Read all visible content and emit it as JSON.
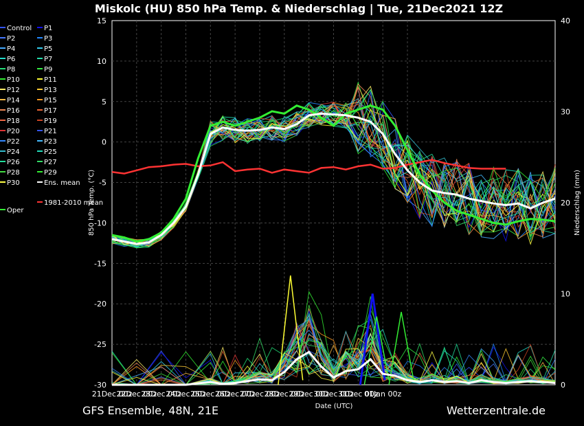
{
  "chart_data": {
    "type": "line",
    "title": "Miskolc  (HU)  850 hPa Temp. & Niederschlag | Tue, 21Dec2021 12Z",
    "xlabel": "Date (UTC)",
    "ylabel_left": "850 hPa Temp. (°C)",
    "ylabel_right": "Niederschlag (mm)",
    "ylim_left": [
      -30,
      15
    ],
    "ylim_right": [
      0,
      40
    ],
    "left_ticks": [
      "15",
      "10",
      "5",
      "0",
      "-5",
      "-10",
      "-15",
      "-20",
      "-25",
      "-30"
    ],
    "right_ticks": [
      "40",
      "30",
      "20",
      "10",
      "0"
    ],
    "x_ticks": [
      "21Dec 00z",
      "22Dec 00z",
      "23Dec 00z",
      "24Dec 00z",
      "25Dec 00z",
      "26Dec 00z",
      "27Dec 00z",
      "28Dec 00z",
      "29Dec 00z",
      "30Dec 00z",
      "31Dec 00z",
      "01Jan 00z"
    ],
    "x_hours_range": [
      0,
      432
    ],
    "grid": true,
    "legend_position": "left",
    "legend": [
      {
        "name": "Control",
        "color": "#3355ff"
      },
      {
        "name": "P1",
        "color": "#1111ee"
      },
      {
        "name": "P2",
        "color": "#4477ff"
      },
      {
        "name": "P3",
        "color": "#2288ff"
      },
      {
        "name": "P4",
        "color": "#44aaff"
      },
      {
        "name": "P5",
        "color": "#33ccee"
      },
      {
        "name": "P6",
        "color": "#22ddcc"
      },
      {
        "name": "P7",
        "color": "#22ddaa"
      },
      {
        "name": "P8",
        "color": "#22dd77"
      },
      {
        "name": "P9",
        "color": "#33ee44"
      },
      {
        "name": "P10",
        "color": "#33ee33"
      },
      {
        "name": "P11",
        "color": "#ffff33"
      },
      {
        "name": "P12",
        "color": "#ffee66"
      },
      {
        "name": "P13",
        "color": "#ffcc33"
      },
      {
        "name": "P14",
        "color": "#ffbb44"
      },
      {
        "name": "P15",
        "color": "#ff9922"
      },
      {
        "name": "P16",
        "color": "#ee8855"
      },
      {
        "name": "P17",
        "color": "#ee6633"
      },
      {
        "name": "P18",
        "color": "#ee6644"
      },
      {
        "name": "P19",
        "color": "#cc4422"
      },
      {
        "name": "P20",
        "color": "#dd3333"
      },
      {
        "name": "P21",
        "color": "#3355ee"
      },
      {
        "name": "P22",
        "color": "#3388ff"
      },
      {
        "name": "P23",
        "color": "#44bbff"
      },
      {
        "name": "P24",
        "color": "#33bbcc"
      },
      {
        "name": "P25",
        "color": "#22ddbb"
      },
      {
        "name": "P26",
        "color": "#22dd99"
      },
      {
        "name": "P27",
        "color": "#33dd66"
      },
      {
        "name": "P28",
        "color": "#44dd44"
      },
      {
        "name": "P29",
        "color": "#33ee33"
      },
      {
        "name": "P30",
        "color": "#ffff44"
      },
      {
        "name": "Ens. mean",
        "color": "#ffffff"
      },
      {
        "name": "1981-2010 mean",
        "color": "#ff3333"
      },
      {
        "name": "Oper",
        "color": "#33ee33"
      }
    ],
    "ensemble_mean_temp": {
      "x_hours": [
        0,
        12,
        24,
        36,
        48,
        60,
        72,
        84,
        96,
        108,
        120,
        132,
        144,
        156,
        168,
        180,
        192,
        204,
        216,
        228,
        240,
        252,
        264,
        276,
        288,
        300,
        312,
        324,
        336,
        348,
        360,
        372,
        384,
        396,
        408,
        420,
        432
      ],
      "values": [
        -12.0,
        -12.3,
        -12.6,
        -12.4,
        -11.5,
        -10.0,
        -8.0,
        -4.0,
        1.0,
        1.8,
        1.5,
        1.4,
        1.5,
        1.8,
        1.6,
        2.2,
        3.3,
        3.5,
        3.4,
        3.3,
        3.0,
        2.5,
        1.0,
        -1.5,
        -3.5,
        -5.0,
        -6.0,
        -6.3,
        -6.5,
        -7.0,
        -7.3,
        -7.6,
        -7.8,
        -7.6,
        -8.2,
        -7.5,
        -7.0
      ]
    },
    "oper_temp": {
      "x_hours": [
        0,
        12,
        24,
        36,
        48,
        60,
        72,
        84,
        96,
        108,
        120,
        132,
        144,
        156,
        168,
        180,
        192,
        204,
        216,
        228,
        240,
        252,
        264,
        276,
        288,
        300,
        312,
        324,
        336,
        348,
        360,
        372,
        384,
        396,
        408,
        420,
        432
      ],
      "values": [
        -11.5,
        -11.8,
        -12.3,
        -12.0,
        -11.2,
        -9.5,
        -7.0,
        -2.0,
        2.0,
        2.5,
        2.0,
        2.5,
        3.0,
        3.8,
        3.5,
        4.5,
        4.0,
        3.0,
        2.0,
        3.5,
        4.0,
        4.5,
        4.0,
        2.0,
        -1.0,
        -4.0,
        -6.0,
        -7.5,
        -8.5,
        -9.0,
        -9.5,
        -10.0,
        -10.2,
        -9.8,
        -9.5,
        -9.6,
        -9.8
      ]
    },
    "climate_mean_temp": {
      "x_hours": [
        0,
        12,
        24,
        36,
        48,
        60,
        72,
        84,
        96,
        108,
        120,
        132,
        144,
        156,
        168,
        180,
        192,
        204,
        216,
        228,
        240,
        252,
        264,
        276,
        288,
        300,
        312,
        324,
        336,
        348,
        360,
        372,
        384
      ],
      "values": [
        -3.7,
        -3.9,
        -3.5,
        -3.1,
        -3.0,
        -2.8,
        -2.7,
        -3.0,
        -2.9,
        -2.5,
        -3.6,
        -3.4,
        -3.3,
        -3.8,
        -3.4,
        -3.6,
        -3.8,
        -3.2,
        -3.1,
        -3.4,
        -3.0,
        -2.8,
        -3.3,
        -3.2,
        -2.8,
        -2.5,
        -2.2,
        -2.6,
        -2.9,
        -3.2,
        -3.3,
        -3.3,
        -3.3
      ]
    },
    "ensemble_mean_precip": {
      "x_hours": [
        0,
        24,
        48,
        72,
        96,
        108,
        120,
        132,
        144,
        156,
        168,
        180,
        192,
        204,
        216,
        228,
        240,
        252,
        264,
        276,
        288,
        300,
        312,
        324,
        336,
        348,
        360,
        372,
        384,
        396,
        408,
        420,
        432
      ],
      "values": [
        0,
        0,
        0,
        0,
        0.3,
        0.1,
        0.2,
        0.4,
        0.6,
        0.5,
        1.4,
        2.8,
        3.6,
        2.0,
        0.8,
        1.5,
        1.7,
        2.8,
        1.2,
        1.0,
        0.5,
        0.3,
        0.5,
        0.3,
        0.4,
        0.2,
        0.5,
        0.3,
        0.2,
        0.3,
        0.4,
        0.3,
        0.2
      ]
    },
    "precip_peaks": [
      {
        "member": "P11",
        "x_hours": 174,
        "value": 12
      },
      {
        "member": "P1",
        "x_hours": 254,
        "value": 10
      },
      {
        "member": "P9",
        "x_hours": 258,
        "value": 7.5
      },
      {
        "member": "P29",
        "x_hours": 282,
        "value": 8
      }
    ]
  },
  "footer": {
    "left": "GFS Ensemble, 48N, 21E",
    "right": "Wetterzentrale.de"
  }
}
